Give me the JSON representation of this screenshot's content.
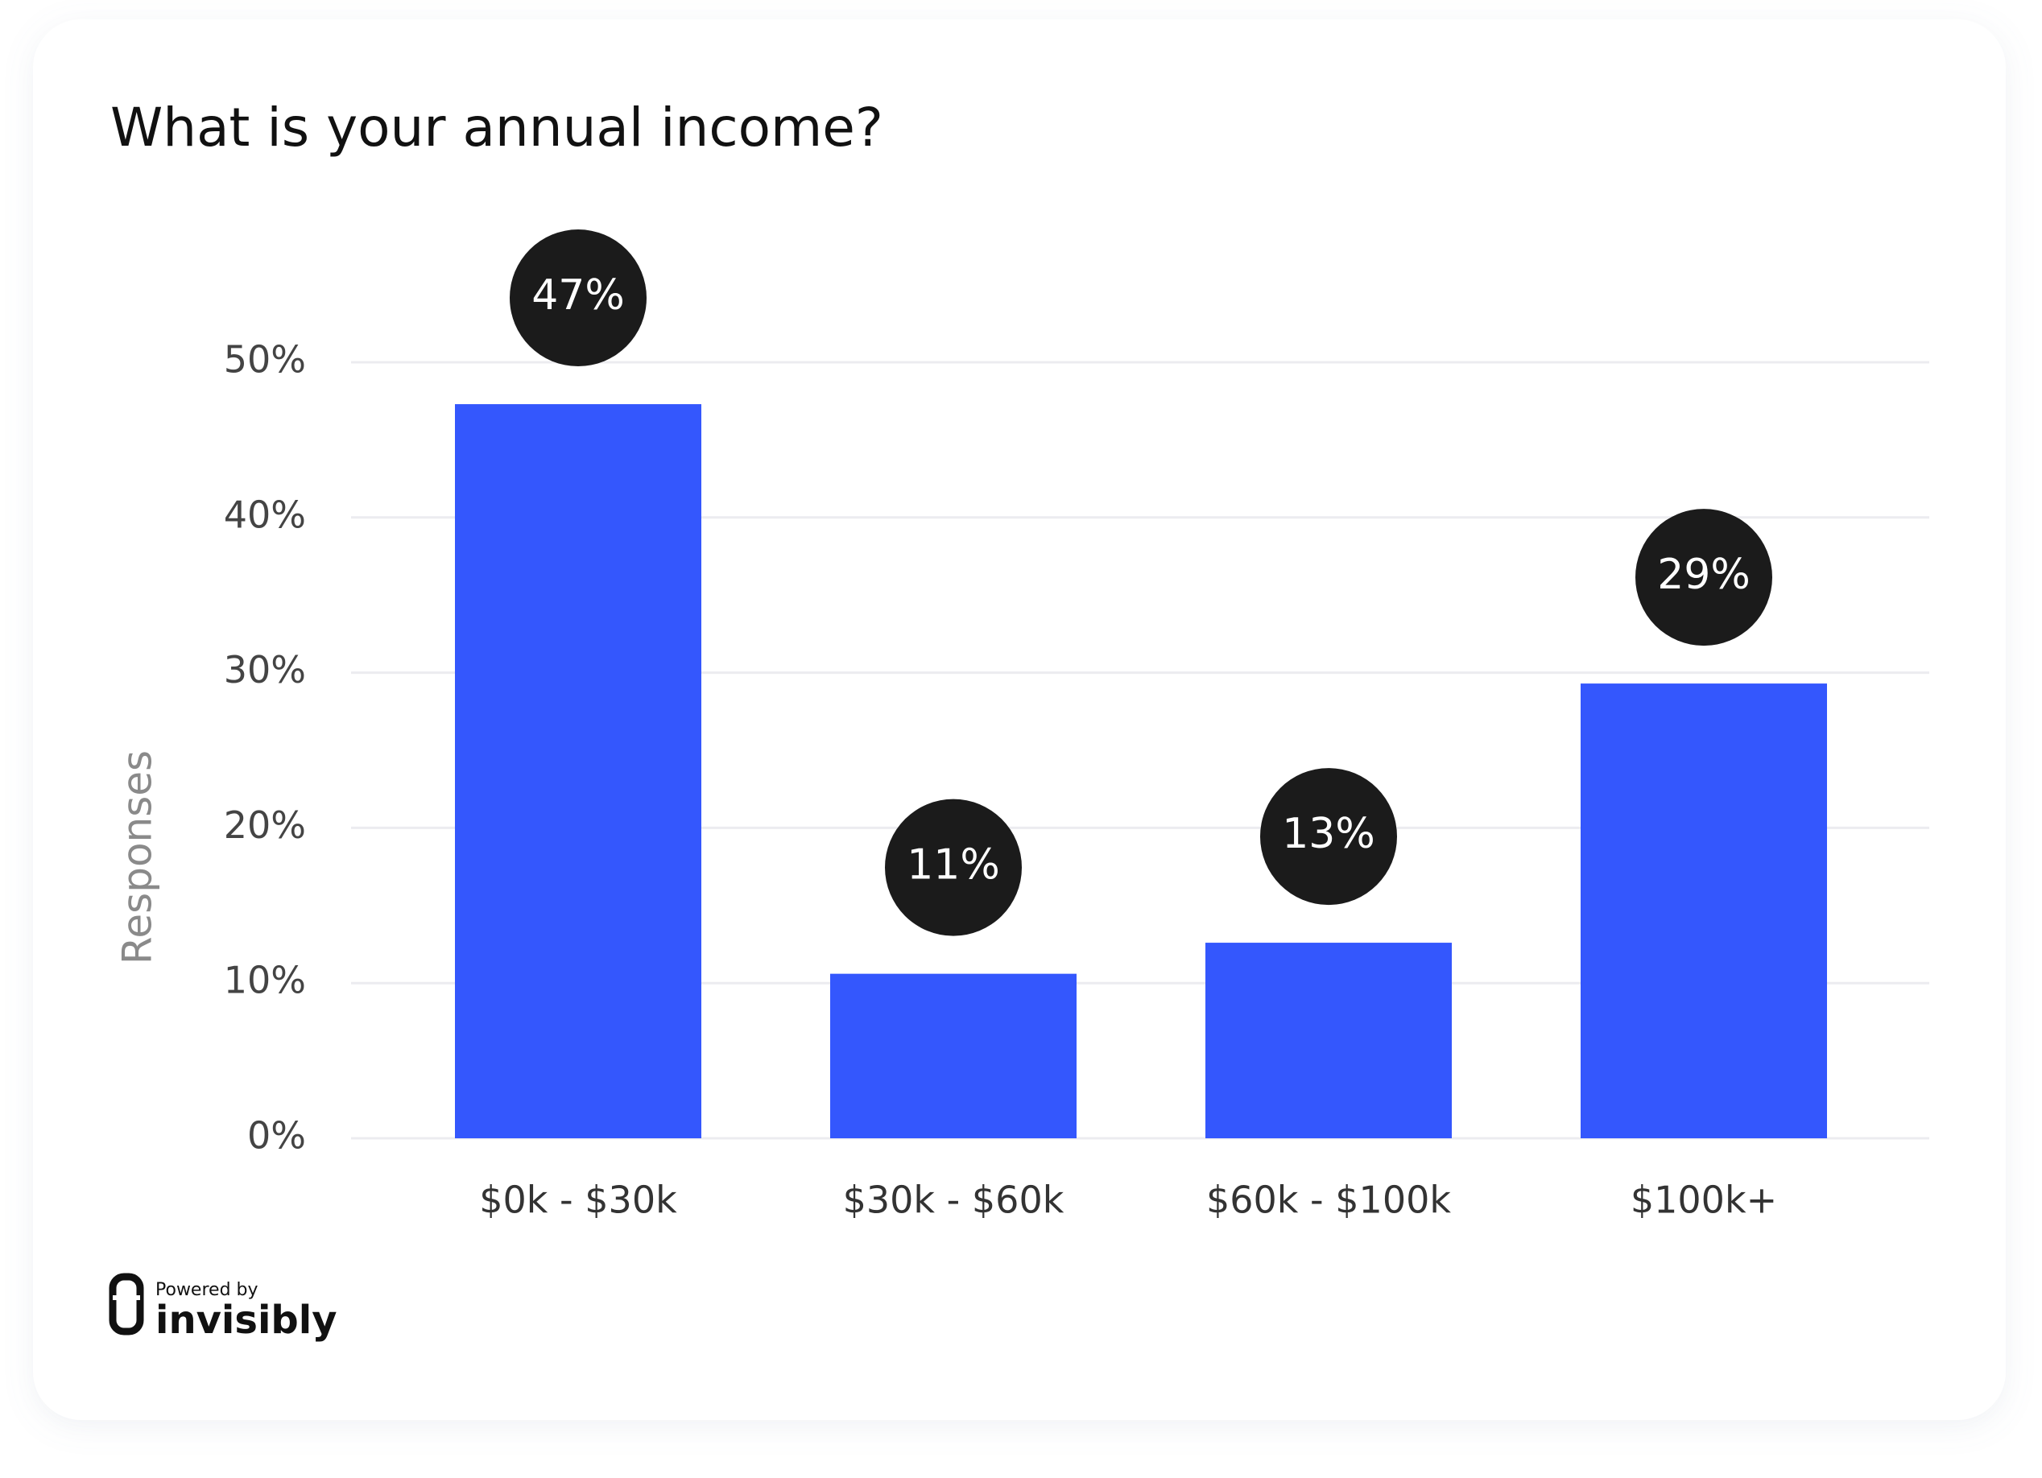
{
  "chart_data": {
    "type": "bar",
    "title": "What is your annual income?",
    "y_label": "Responses",
    "categories": [
      "$0k - $30k",
      "$30k - $60k",
      "$60k - $100k",
      "$100k+"
    ],
    "values": [
      47.3,
      10.6,
      12.6,
      29.3
    ],
    "value_labels": [
      "47%",
      "11%",
      "13%",
      "29%"
    ],
    "color": "#3457fd",
    "ylim": [
      0,
      50
    ],
    "yticks": [
      {
        "value": 0,
        "label": "0%"
      },
      {
        "value": 10,
        "label": "10%"
      },
      {
        "value": 20,
        "label": "20%"
      },
      {
        "value": 30,
        "label": "30%"
      },
      {
        "value": 40,
        "label": "40%"
      },
      {
        "value": 50,
        "label": "50%"
      }
    ],
    "grid": true
  },
  "branding": {
    "caption": "Powered by",
    "name": "invisibly"
  }
}
